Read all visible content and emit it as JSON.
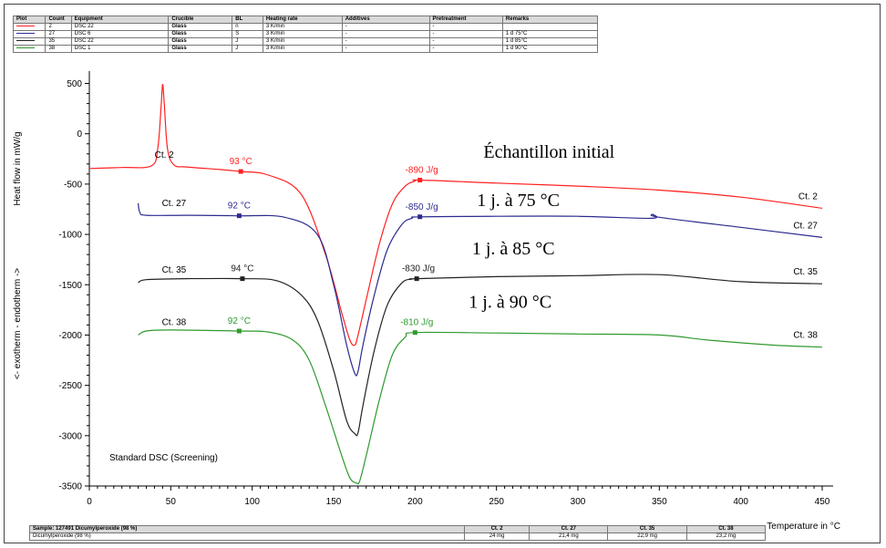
{
  "table": {
    "headers": [
      "Plot",
      "Count",
      "Equipment",
      "Crucible",
      "BL",
      "Heating rate",
      "Additives",
      "Pretreatment",
      "Remarks"
    ],
    "rows": [
      {
        "color": "#ff2020",
        "count": "2",
        "equipment": "DSC 22",
        "crucible": "Glass",
        "bl": "n",
        "rate": "3 K/min",
        "additives": "-",
        "pretreatment": "-",
        "remarks": ""
      },
      {
        "color": "#2b2b8f",
        "count": "27",
        "equipment": "DSC 6",
        "crucible": "Glass",
        "bl": "S",
        "rate": "3 K/min",
        "additives": "-",
        "pretreatment": "-",
        "remarks": "1 d 75°C"
      },
      {
        "color": "#222222",
        "count": "35",
        "equipment": "DSC 22",
        "crucible": "Glass",
        "bl": "J",
        "rate": "3 K/min",
        "additives": "-",
        "pretreatment": "-",
        "remarks": "1 d 85°C"
      },
      {
        "color": "#2e9a2e",
        "count": "38",
        "equipment": "DSC 1",
        "crucible": "Glass",
        "bl": "J",
        "rate": "3 K/min",
        "additives": "-",
        "pretreatment": "-",
        "remarks": "1 d 90°C"
      }
    ]
  },
  "bottom_table": {
    "sample": "Sample: 127491 Dicumylperoxide (98 %)",
    "headers": [
      "Ct. 2",
      "Ct. 27",
      "Ct. 35",
      "Ct. 38"
    ],
    "row_label": "Dicumylperoxide (98 %)",
    "values": [
      "24 mg",
      "21,4 mg",
      "22,9 mg",
      "23,2 mg"
    ]
  },
  "chart_data": {
    "type": "line",
    "xlabel": "Temperature in °C",
    "ylabel": "Heat flow in mW/g",
    "ylabel2": "<- exotherm - endotherm ->",
    "note": "Standard DSC (Screening)",
    "xlim": [
      0,
      450
    ],
    "ylim": [
      -3500,
      550
    ],
    "xticks": [
      0,
      50,
      100,
      150,
      200,
      250,
      300,
      350,
      400,
      450
    ],
    "yticks": [
      500,
      0,
      -500,
      -1000,
      -1500,
      -2000,
      -2500,
      -3000,
      -3500
    ],
    "series": [
      {
        "name": "Ct. 2",
        "color": "#ff2020",
        "x": [
          0,
          20,
          38,
          42,
          44,
          45,
          46,
          48,
          52,
          60,
          80,
          93,
          110,
          130,
          145,
          155,
          160,
          163,
          165,
          170,
          178,
          186,
          194,
          200,
          203,
          250,
          300,
          350,
          400,
          450
        ],
        "y": [
          -345,
          -335,
          -320,
          -150,
          250,
          490,
          300,
          -150,
          -310,
          -330,
          -355,
          -375,
          -410,
          -600,
          -1200,
          -1780,
          -2050,
          -2100,
          -2000,
          -1650,
          -1100,
          -700,
          -520,
          -470,
          -460,
          -490,
          -520,
          -560,
          -630,
          -740
        ],
        "label": "Ct. 2",
        "label_at": [
          46,
          -240
        ],
        "end_label": "Ct. 2",
        "markers": [
          {
            "x": 93,
            "y": -375,
            "text": "93 °C"
          },
          {
            "x": 203,
            "y": -460,
            "text": "-890 J/g"
          }
        ]
      },
      {
        "name": "Ct. 27",
        "color": "#2b2b8f",
        "x": [
          30,
          31,
          35,
          60,
          92,
          120,
          140,
          150,
          158,
          163,
          165,
          168,
          175,
          183,
          192,
          198,
          203,
          250,
          300,
          345,
          346,
          350,
          400,
          450
        ],
        "y": [
          -690,
          -780,
          -810,
          -810,
          -815,
          -830,
          -1000,
          -1500,
          -2100,
          -2380,
          -2360,
          -2100,
          -1600,
          -1150,
          -900,
          -840,
          -825,
          -820,
          -820,
          -840,
          -800,
          -830,
          -930,
          -1030
        ],
        "label": "Ct. 27",
        "label_at": [
          52,
          -720
        ],
        "end_label": "Ct. 27",
        "markers": [
          {
            "x": 92,
            "y": -815,
            "text": "92 °C"
          },
          {
            "x": 203,
            "y": -825,
            "text": "-850 J/g"
          }
        ]
      },
      {
        "name": "Ct. 35",
        "color": "#222222",
        "x": [
          30,
          35,
          60,
          94,
          115,
          130,
          140,
          150,
          158,
          163,
          165,
          168,
          175,
          183,
          192,
          198,
          201,
          250,
          300,
          350,
          400,
          450
        ],
        "y": [
          -1480,
          -1450,
          -1440,
          -1440,
          -1460,
          -1600,
          -1850,
          -2350,
          -2850,
          -2980,
          -2970,
          -2700,
          -2150,
          -1700,
          -1480,
          -1445,
          -1440,
          -1420,
          -1410,
          -1400,
          -1470,
          -1490
        ],
        "label": "Ct. 35",
        "label_at": [
          52,
          -1380
        ],
        "end_label": "Ct. 35",
        "markers": [
          {
            "x": 94,
            "y": -1440,
            "text": "94 °C"
          },
          {
            "x": 201,
            "y": -1440,
            "text": "-830 J/g"
          }
        ]
      },
      {
        "name": "Ct. 38",
        "color": "#2e9a2e",
        "x": [
          30,
          35,
          50,
          92,
          110,
          125,
          135,
          145,
          155,
          160,
          164,
          166,
          170,
          178,
          186,
          194,
          200,
          250,
          300,
          350,
          380,
          420,
          450
        ],
        "y": [
          -2000,
          -1960,
          -1950,
          -1960,
          -1970,
          -2050,
          -2250,
          -2700,
          -3200,
          -3420,
          -3470,
          -3450,
          -3200,
          -2650,
          -2200,
          -2020,
          -1975,
          -1980,
          -1990,
          -2000,
          -2050,
          -2100,
          -2120
        ],
        "label": "Ct. 38",
        "label_at": [
          52,
          -1900
        ],
        "end_label": "Ct. 38",
        "markers": [
          {
            "x": 92,
            "y": -1960,
            "text": "92 °C"
          },
          {
            "x": 200,
            "y": -1975,
            "text": "-810 J/g"
          }
        ]
      }
    ],
    "annotations": [
      {
        "text": "Échantillon initial",
        "x": 242,
        "y": -240
      },
      {
        "text": "1 j. à 75 °C",
        "x": 238,
        "y": -720
      },
      {
        "text": "1 j. à 85 °C",
        "x": 235,
        "y": -1200
      },
      {
        "text": "1 j. à 90 °C",
        "x": 233,
        "y": -1730
      }
    ]
  }
}
